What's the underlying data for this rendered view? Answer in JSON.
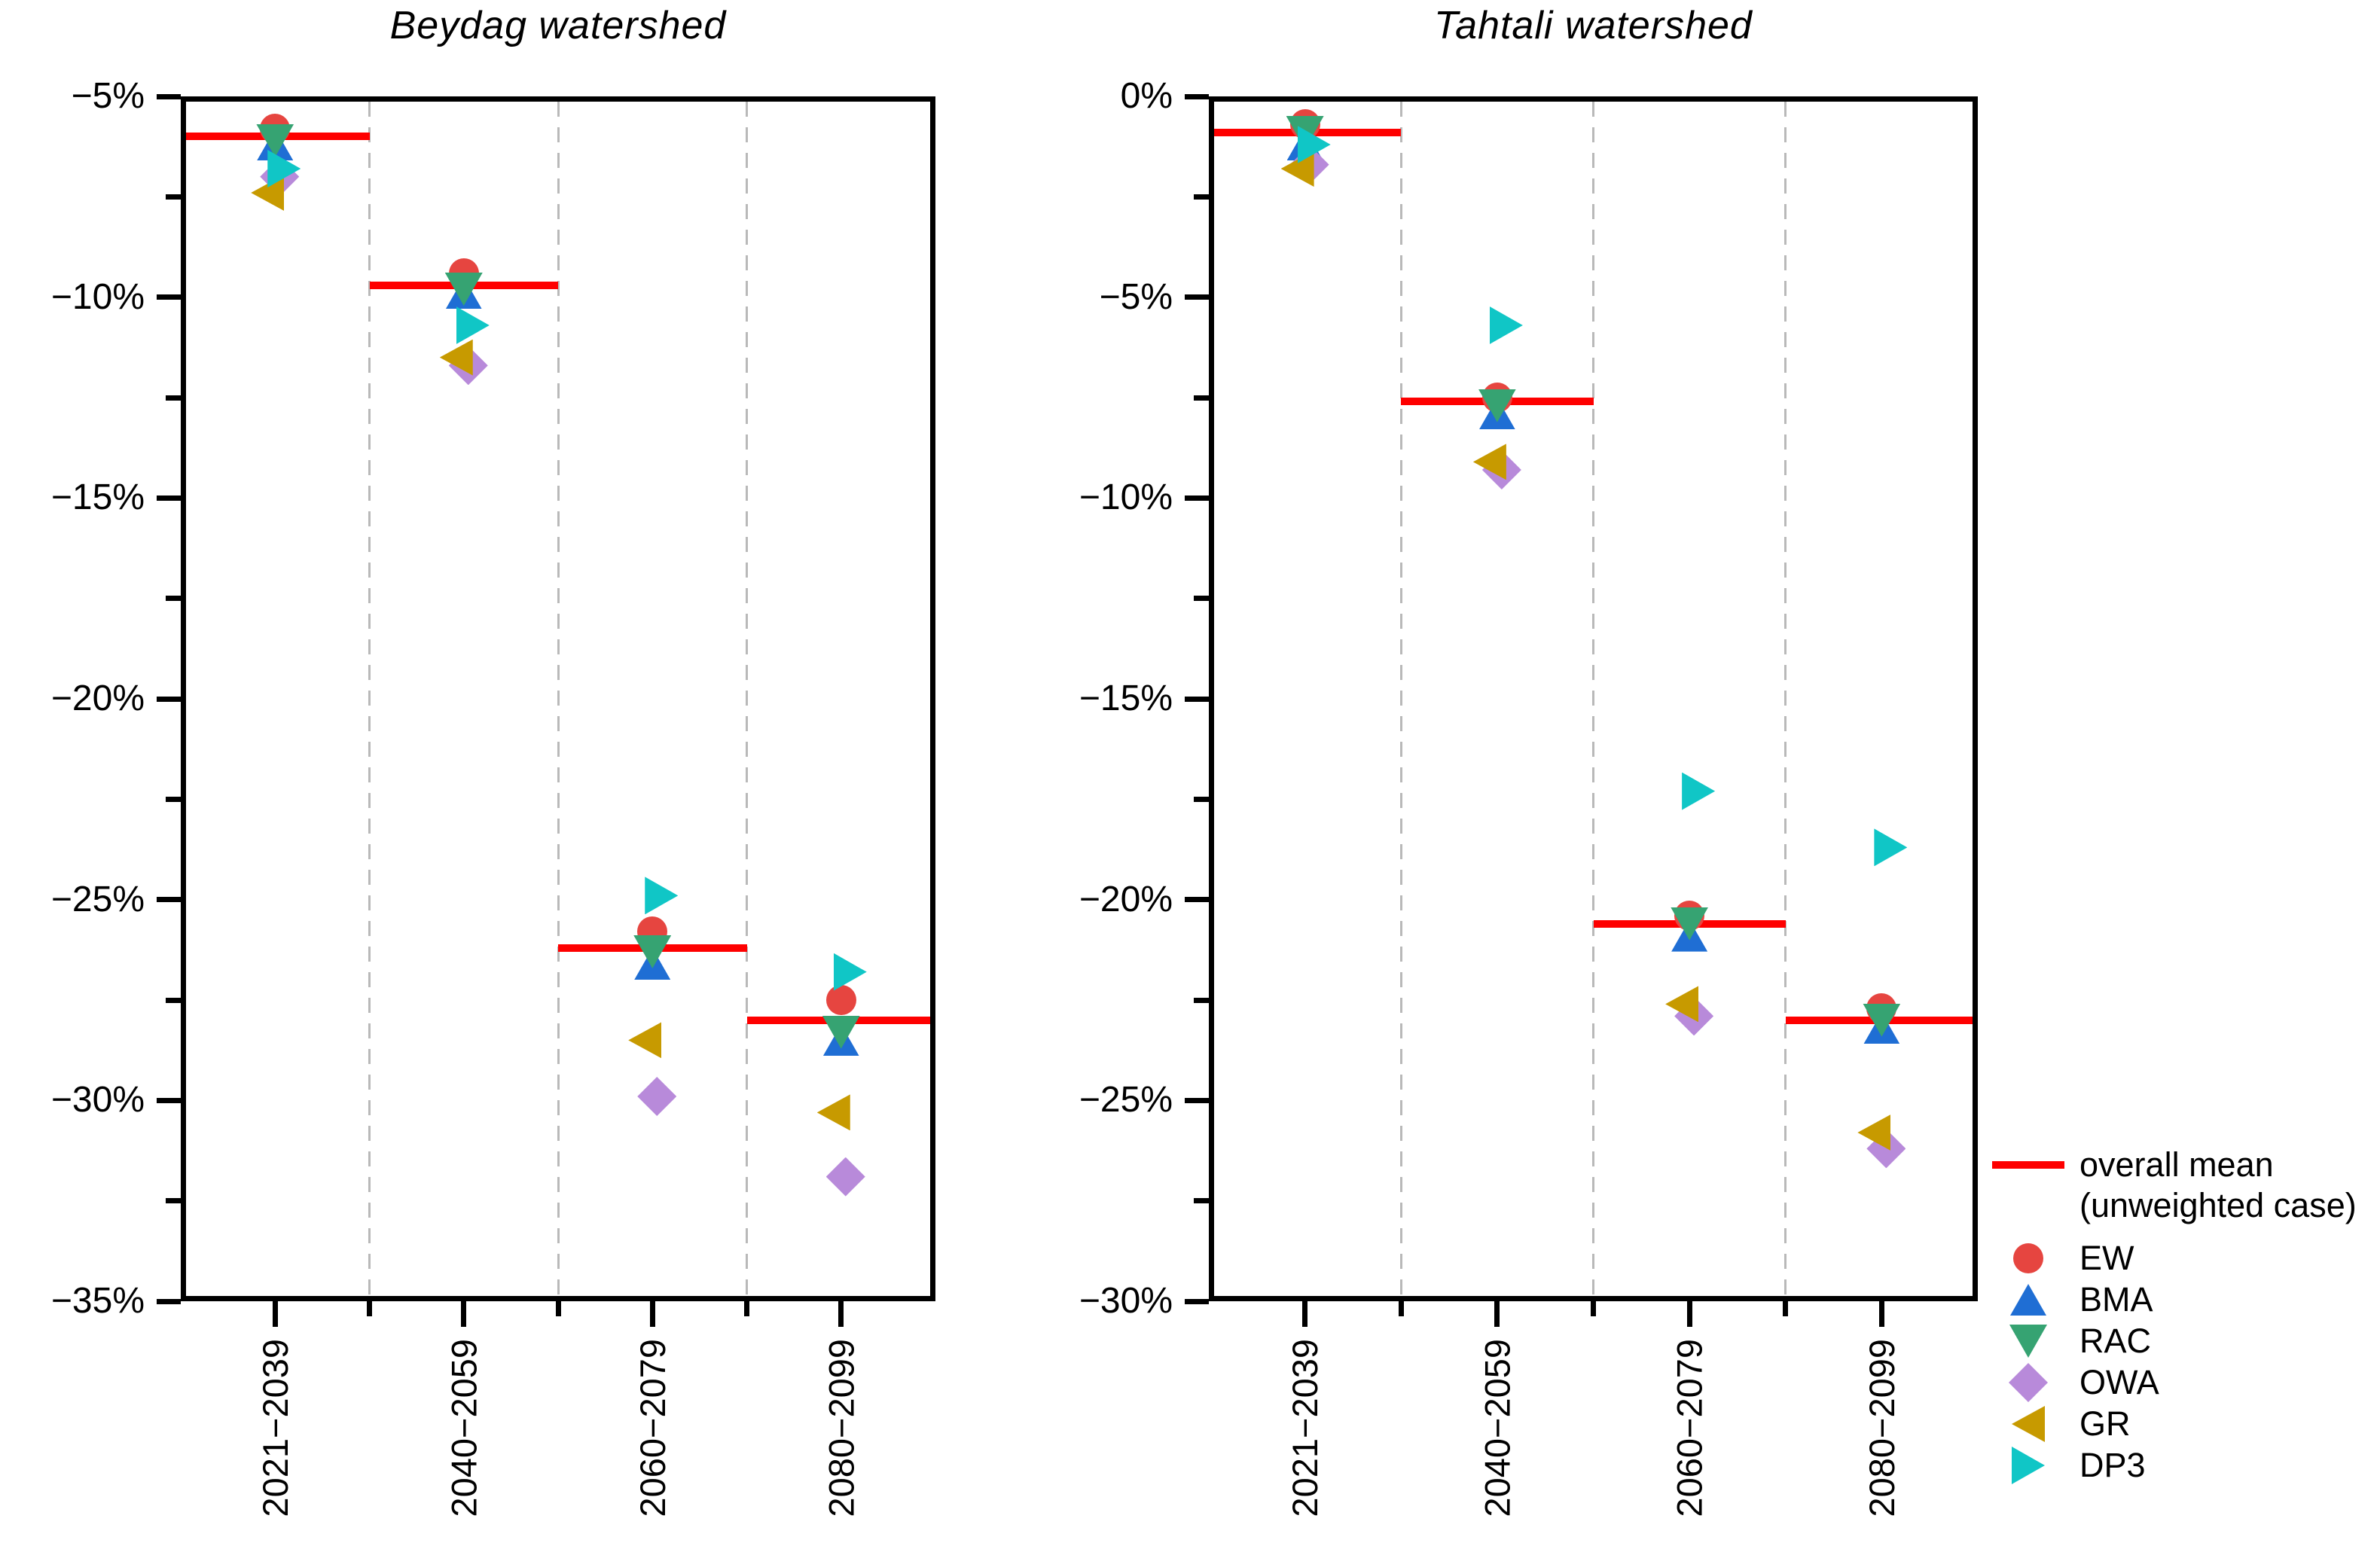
{
  "legend": {
    "mean_label_line1": "overall mean",
    "mean_label_line2": "(unweighted case)",
    "mean_color": "#fe0000",
    "series": [
      {
        "id": "EW",
        "label": "EW",
        "marker": "circle",
        "color": "#e64540"
      },
      {
        "id": "BMA",
        "label": "BMA",
        "marker": "triangle-up",
        "color": "#1f6ed4"
      },
      {
        "id": "RAC",
        "label": "RAC",
        "marker": "triangle-down",
        "color": "#36a372"
      },
      {
        "id": "OWA",
        "label": "OWA",
        "marker": "diamond",
        "color": "#b88ada"
      },
      {
        "id": "GR",
        "label": "GR",
        "marker": "triangle-left",
        "color": "#c79a00"
      },
      {
        "id": "DP3",
        "label": "DP3",
        "marker": "triangle-right",
        "color": "#10c6c6"
      }
    ]
  },
  "chart_data": [
    {
      "type": "scatter",
      "title": "Beydag watershed",
      "categories": [
        "2021−2039",
        "2040−2059",
        "2060−2079",
        "2080−2099"
      ],
      "ylim": [
        -35,
        -5
      ],
      "ytick_step": 5,
      "ytick_labels": [
        "−5%",
        "−10%",
        "−15%",
        "−20%",
        "−25%",
        "−30%",
        "−35%"
      ],
      "grid": "vertical-dashed-between-categories",
      "overall_mean": [
        -6.0,
        -9.7,
        -26.2,
        -28.0
      ],
      "series": [
        {
          "name": "EW",
          "values": [
            -5.8,
            -9.4,
            -25.8,
            -27.5
          ]
        },
        {
          "name": "BMA",
          "values": [
            -6.2,
            -9.9,
            -26.6,
            -28.5
          ]
        },
        {
          "name": "RAC",
          "values": [
            -6.1,
            -9.8,
            -26.3,
            -28.3
          ]
        },
        {
          "name": "OWA",
          "values": [
            -7.0,
            -11.7,
            -29.9,
            -31.9
          ]
        },
        {
          "name": "GR",
          "values": [
            -7.4,
            -11.5,
            -28.5,
            -30.3
          ]
        },
        {
          "name": "DP3",
          "values": [
            -6.8,
            -10.7,
            -24.9,
            -26.8
          ]
        }
      ]
    },
    {
      "type": "scatter",
      "title": "Tahtali watershed",
      "categories": [
        "2021−2039",
        "2040−2059",
        "2060−2079",
        "2080−2099"
      ],
      "ylim": [
        -30,
        0
      ],
      "ytick_step": 5,
      "ytick_labels": [
        "0%",
        "−5%",
        "−10%",
        "−15%",
        "−20%",
        "−25%",
        "−30%"
      ],
      "grid": "vertical-dashed-between-categories",
      "overall_mean": [
        -0.9,
        -7.6,
        -20.6,
        -23.0
      ],
      "series": [
        {
          "name": "EW",
          "values": [
            -0.7,
            -7.5,
            -20.4,
            -22.7
          ]
        },
        {
          "name": "BMA",
          "values": [
            -1.2,
            -7.9,
            -20.9,
            -23.2
          ]
        },
        {
          "name": "RAC",
          "values": [
            -0.9,
            -7.7,
            -20.6,
            -23.0
          ]
        },
        {
          "name": "OWA",
          "values": [
            -1.7,
            -9.3,
            -22.9,
            -26.2
          ]
        },
        {
          "name": "GR",
          "values": [
            -1.8,
            -9.1,
            -22.6,
            -25.8
          ]
        },
        {
          "name": "DP3",
          "values": [
            -1.2,
            -5.7,
            -17.3,
            -18.7
          ]
        }
      ]
    }
  ]
}
